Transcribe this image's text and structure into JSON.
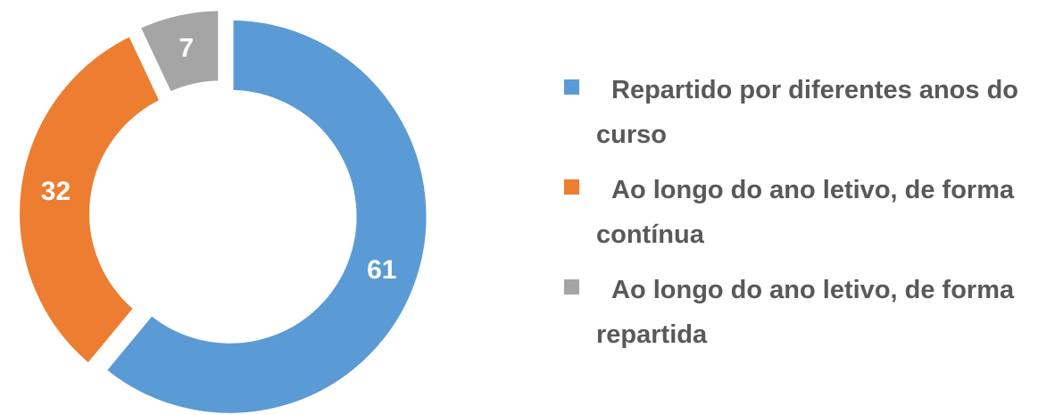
{
  "chart_data": {
    "type": "donut",
    "categories": [
      "Repartido por diferentes anos do curso",
      "Ao longo do ano letivo, de forma contínua",
      "Ao longo do ano letivo, de forma repartida"
    ],
    "values": [
      61,
      32,
      7
    ],
    "colors": [
      "#5b9bd5",
      "#ed7d31",
      "#a5a5a5"
    ],
    "legend": "right"
  }
}
